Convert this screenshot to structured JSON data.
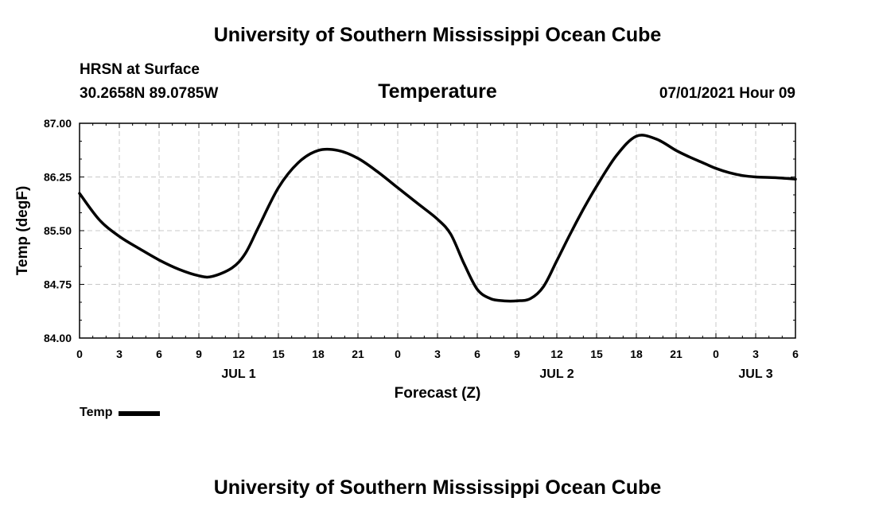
{
  "header": {
    "top_title": "University of Southern Mississippi Ocean Cube",
    "station": "HRSN at Surface",
    "coords": "30.2658N  89.0785W",
    "variable": "Temperature",
    "timestamp": "07/01/2021 Hour 09"
  },
  "footer": {
    "bottom_title": "University of Southern Mississippi Ocean Cube"
  },
  "legend": {
    "label": "Temp"
  },
  "chart_data": {
    "type": "line",
    "title": "Temperature",
    "xlabel": "Forecast (Z)",
    "ylabel": "Temp (degF)",
    "xlim": [
      0,
      54
    ],
    "ylim": [
      84.0,
      87.0
    ],
    "yticks": [
      "84.00",
      "84.75",
      "85.50",
      "86.25",
      "87.00"
    ],
    "xtick_labels": [
      "0",
      "3",
      "6",
      "9",
      "12",
      "15",
      "18",
      "21",
      "0",
      "3",
      "6",
      "9",
      "12",
      "15",
      "18",
      "21",
      "0",
      "3",
      "6"
    ],
    "date_labels": [
      {
        "x": 12,
        "label": "JUL 1"
      },
      {
        "x": 36,
        "label": "JUL 2"
      },
      {
        "x": 51,
        "label": "JUL 3"
      }
    ],
    "grid": true,
    "legend": "bottom-left",
    "series": [
      {
        "name": "Temp",
        "color": "#000000",
        "x": [
          0,
          1.5,
          3,
          4.5,
          6,
          7.5,
          9,
          10,
          11.5,
          12.5,
          13.5,
          15,
          16.5,
          18,
          19.5,
          21,
          22.5,
          24,
          25.5,
          27,
          28,
          29,
          30,
          31,
          32,
          33,
          34,
          35,
          36,
          37,
          38,
          39,
          40.5,
          42,
          43.5,
          45,
          46,
          47,
          48,
          49,
          50,
          51,
          52.5,
          54
        ],
        "values": [
          86.02,
          85.65,
          85.42,
          85.25,
          85.09,
          84.96,
          84.87,
          84.86,
          84.98,
          85.18,
          85.55,
          86.1,
          86.45,
          86.62,
          86.62,
          86.51,
          86.32,
          86.1,
          85.88,
          85.66,
          85.45,
          85.04,
          84.68,
          84.55,
          84.52,
          84.52,
          84.55,
          84.72,
          85.08,
          85.45,
          85.8,
          86.12,
          86.55,
          86.82,
          86.78,
          86.62,
          86.53,
          86.45,
          86.37,
          86.31,
          86.27,
          86.25,
          86.24,
          86.22
        ]
      }
    ]
  }
}
